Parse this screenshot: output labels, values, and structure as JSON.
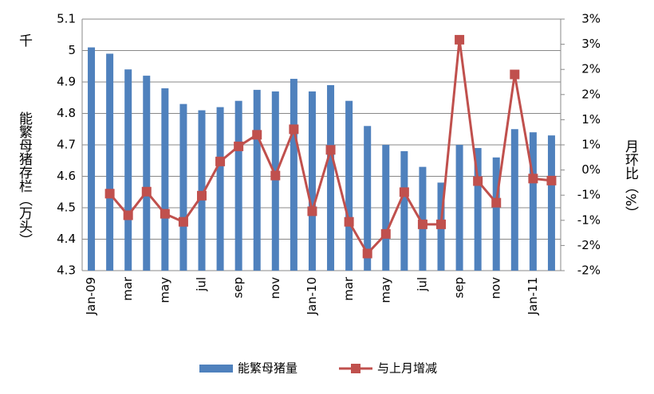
{
  "chart_data": {
    "type": "bar_line",
    "unit_label": "千",
    "y_label": "能繁母猪存栏（万头）",
    "y2_label": "月环比（%）",
    "categories": [
      "Jan-09",
      null,
      "mar",
      null,
      "may",
      null,
      "jul",
      null,
      "sep",
      null,
      "nov",
      null,
      "Jan-10",
      null,
      "mar",
      null,
      "may",
      null,
      "jul",
      null,
      "sep",
      null,
      "nov",
      null,
      "Jan-11",
      null
    ],
    "series": [
      {
        "name": "能繁母猪量",
        "type": "bar",
        "color": "#4f81bd",
        "values": [
          5.01,
          4.99,
          4.94,
          4.92,
          4.88,
          4.83,
          4.81,
          4.82,
          4.84,
          4.875,
          4.87,
          4.91,
          4.87,
          4.89,
          4.84,
          4.76,
          4.7,
          4.68,
          4.63,
          4.58,
          4.7,
          4.69,
          4.66,
          4.75,
          4.74,
          4.73
        ]
      },
      {
        "name": "与上月增减",
        "type": "line",
        "axis": "y2",
        "color": "#c0504d",
        "values": [
          null,
          -0.47,
          -0.9,
          -0.43,
          -0.87,
          -1.03,
          -0.51,
          0.17,
          0.47,
          0.7,
          -0.11,
          0.81,
          -0.82,
          0.4,
          -1.03,
          -1.66,
          -1.27,
          -0.44,
          -1.08,
          -1.08,
          2.59,
          -0.22,
          -0.65,
          1.9,
          -0.17,
          -0.21
        ]
      }
    ],
    "ylim": [
      4.3,
      5.1
    ],
    "yticks": [
      4.3,
      4.4,
      4.5,
      4.6,
      4.7,
      4.8,
      4.9,
      5,
      5.1
    ],
    "y2lim": [
      -2,
      3
    ],
    "y2ticks": [
      {
        "value": -2,
        "label": "-2%"
      },
      {
        "value": -1.5,
        "label": "-2%"
      },
      {
        "value": -1,
        "label": "-1%"
      },
      {
        "value": -0.5,
        "label": "-1%"
      },
      {
        "value": 0,
        "label": "0%"
      },
      {
        "value": 0.5,
        "label": "1%"
      },
      {
        "value": 1,
        "label": "1%"
      },
      {
        "value": 1.5,
        "label": "2%"
      },
      {
        "value": 2,
        "label": "2%"
      },
      {
        "value": 2.5,
        "label": "3%"
      },
      {
        "value": 3,
        "label": "3%"
      }
    ],
    "grid": true,
    "legend": "bottom"
  }
}
